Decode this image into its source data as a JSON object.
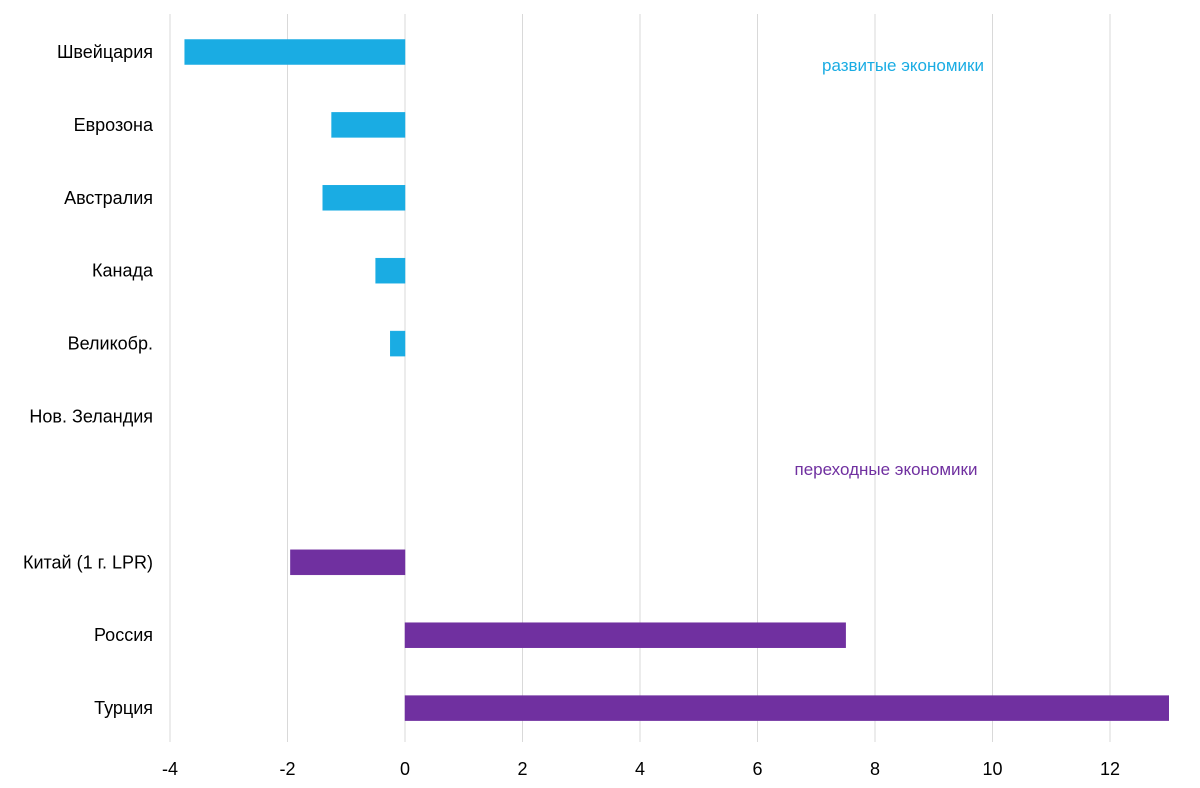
{
  "chart_data": {
    "type": "bar",
    "orientation": "horizontal",
    "categories": [
      "Швейцария",
      "Еврозона",
      "Австралия",
      "Канада",
      "Великобр.",
      "Нов. Зеландия",
      "",
      "Китай (1 г. LPR)",
      "Россия",
      "Турция"
    ],
    "series": [
      {
        "group": "developed",
        "color": "#1aace3",
        "values": [
          -3.75,
          -1.25,
          -1.4,
          -0.5,
          -0.25,
          0,
          null,
          null,
          null,
          null
        ]
      },
      {
        "group": "transition",
        "color": "#7030a0",
        "values": [
          null,
          null,
          null,
          null,
          null,
          null,
          null,
          -1.95,
          7.5,
          13.0
        ]
      }
    ],
    "annotations": [
      {
        "text": "развитые экономики",
        "color": "#1aace3",
        "anchor_category": "Швейцария"
      },
      {
        "text": "переходные экономики",
        "color": "#7030a0",
        "anchor_category": ""
      }
    ],
    "x_ticks": [
      "-4",
      "-2",
      "0",
      "2",
      "4",
      "6",
      "8",
      "10",
      "12"
    ],
    "xlim": [
      -4,
      13
    ],
    "grid": "vertical",
    "legend": "none",
    "title": "",
    "xlabel": "",
    "ylabel": ""
  }
}
